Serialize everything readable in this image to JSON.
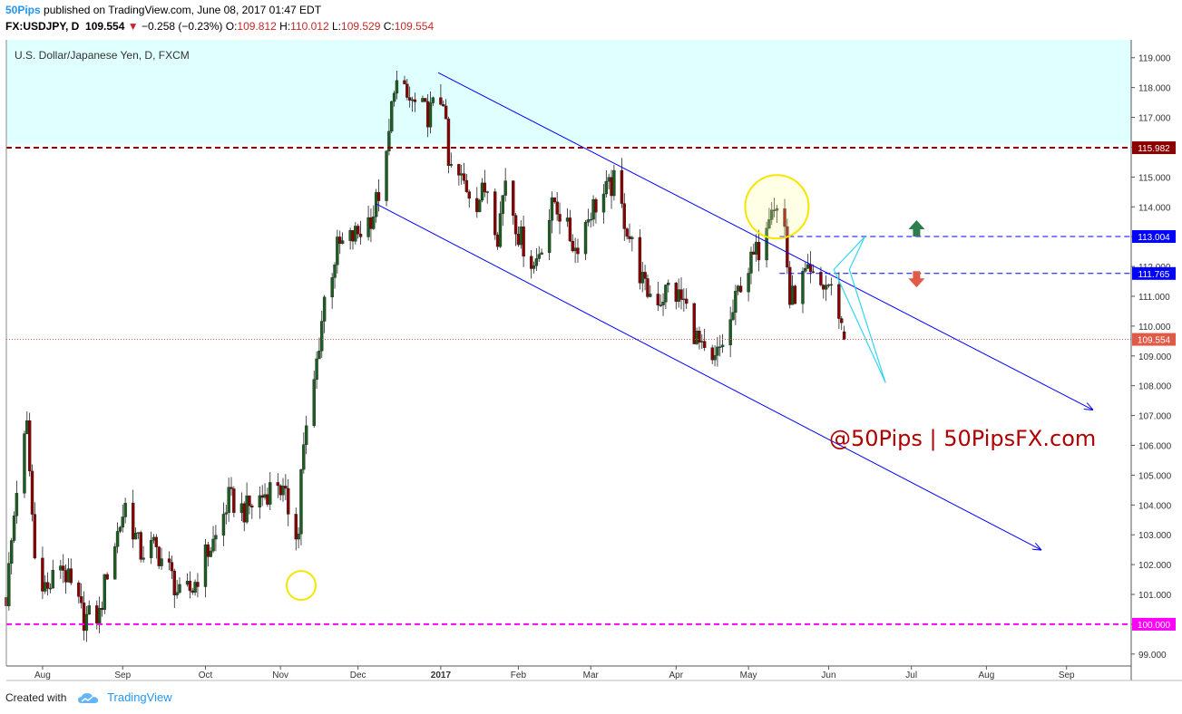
{
  "header": {
    "author": "50Pips",
    "published": "published on TradingView.com, June 08, 2017 01:47 EDT",
    "symbol": "FX:USDJPY, D",
    "price": "109.554",
    "change_arrow": "▼",
    "change": "−0.258 (−0.23%)",
    "o_label": "O:",
    "o": "109.812",
    "h_label": "H:",
    "h": "110.012",
    "l_label": "L:",
    "l": "109.529",
    "c_label": "C:",
    "c": "109.554"
  },
  "chart_title": "U.S. Dollar/Japanese Yen, D, FXCM",
  "watermark": "@50Pips | 50PipsFX.com",
  "footer": {
    "created": "Created with",
    "brand": "TradingView"
  },
  "colors": {
    "up": "#1b5e20",
    "down": "#8b0000",
    "zone": "#e0ffff",
    "channel": "#0000ff",
    "current": "#e05a47",
    "magenta": "#ff00ff",
    "resistance": "#8b0000",
    "label_blue": "#0000ff"
  },
  "chart_data": {
    "type": "candlestick",
    "title": "U.S. Dollar/Japanese Yen, D, FXCM",
    "ylim": [
      98.6,
      119.6
    ],
    "y_ticks": [
      "99.000",
      "100.000",
      "101.000",
      "102.000",
      "103.000",
      "104.000",
      "105.000",
      "106.000",
      "107.000",
      "108.000",
      "109.000",
      "110.000",
      "111.000",
      "112.000",
      "113.000",
      "114.000",
      "115.000",
      "116.000",
      "117.000",
      "118.000",
      "119.000"
    ],
    "x_tick_labels": [
      "Aug",
      "Sep",
      "Oct",
      "Nov",
      "Dec",
      "2017",
      "Feb",
      "Mar",
      "Apr",
      "May",
      "Jun",
      "Jul",
      "Aug",
      "Sep"
    ],
    "close_path": [
      {
        "date": "2016-07-18",
        "close": 100.9
      },
      {
        "date": "2016-07-22",
        "close": 104.6
      },
      {
        "date": "2016-07-26",
        "close": 106.6
      },
      {
        "date": "2016-07-29",
        "close": 102.2
      },
      {
        "date": "2016-08-03",
        "close": 101.1
      },
      {
        "date": "2016-08-08",
        "close": 102.1
      },
      {
        "date": "2016-08-12",
        "close": 101.2
      },
      {
        "date": "2016-08-17",
        "close": 100.2
      },
      {
        "date": "2016-08-23",
        "close": 100.3
      },
      {
        "date": "2016-08-26",
        "close": 101.8
      },
      {
        "date": "2016-09-02",
        "close": 104.0
      },
      {
        "date": "2016-09-08",
        "close": 102.4
      },
      {
        "date": "2016-09-13",
        "close": 102.6
      },
      {
        "date": "2016-09-19",
        "close": 101.8
      },
      {
        "date": "2016-09-23",
        "close": 100.9
      },
      {
        "date": "2016-09-28",
        "close": 101.2
      },
      {
        "date": "2016-10-03",
        "close": 102.3
      },
      {
        "date": "2016-10-07",
        "close": 102.9
      },
      {
        "date": "2016-10-12",
        "close": 104.2
      },
      {
        "date": "2016-10-18",
        "close": 103.8
      },
      {
        "date": "2016-10-25",
        "close": 104.3
      },
      {
        "date": "2016-10-31",
        "close": 104.8
      },
      {
        "date": "2016-11-08",
        "close": 103.0
      },
      {
        "date": "2016-11-09",
        "close": 105.3
      },
      {
        "date": "2016-11-14",
        "close": 108.1
      },
      {
        "date": "2016-11-18",
        "close": 110.9
      },
      {
        "date": "2016-11-23",
        "close": 112.6
      },
      {
        "date": "2016-11-28",
        "close": 112.9
      },
      {
        "date": "2016-12-02",
        "close": 113.2
      },
      {
        "date": "2016-12-07",
        "close": 113.8
      },
      {
        "date": "2016-12-12",
        "close": 115.5
      },
      {
        "date": "2016-12-15",
        "close": 118.2
      },
      {
        "date": "2016-12-20",
        "close": 117.6
      },
      {
        "date": "2016-12-28",
        "close": 117.1
      },
      {
        "date": "2017-01-03",
        "close": 117.7
      },
      {
        "date": "2017-01-05",
        "close": 115.3
      },
      {
        "date": "2017-01-11",
        "close": 114.8
      },
      {
        "date": "2017-01-16",
        "close": 114.2
      },
      {
        "date": "2017-01-20",
        "close": 114.7
      },
      {
        "date": "2017-01-24",
        "close": 113.1
      },
      {
        "date": "2017-01-27",
        "close": 115.0
      },
      {
        "date": "2017-02-01",
        "close": 113.1
      },
      {
        "date": "2017-02-07",
        "close": 112.0
      },
      {
        "date": "2017-02-15",
        "close": 114.2
      },
      {
        "date": "2017-02-23",
        "close": 112.6
      },
      {
        "date": "2017-03-01",
        "close": 113.9
      },
      {
        "date": "2017-03-10",
        "close": 114.8
      },
      {
        "date": "2017-03-15",
        "close": 113.3
      },
      {
        "date": "2017-03-22",
        "close": 111.2
      },
      {
        "date": "2017-03-28",
        "close": 110.9
      },
      {
        "date": "2017-03-31",
        "close": 111.3
      },
      {
        "date": "2017-04-06",
        "close": 110.8
      },
      {
        "date": "2017-04-13",
        "close": 109.1
      },
      {
        "date": "2017-04-17",
        "close": 108.6
      },
      {
        "date": "2017-04-24",
        "close": 110.1
      },
      {
        "date": "2017-04-28",
        "close": 111.5
      },
      {
        "date": "2017-05-05",
        "close": 112.6
      },
      {
        "date": "2017-05-10",
        "close": 114.3
      },
      {
        "date": "2017-05-15",
        "close": 113.3
      },
      {
        "date": "2017-05-17",
        "close": 110.8
      },
      {
        "date": "2017-05-23",
        "close": 111.7
      },
      {
        "date": "2017-05-29",
        "close": 111.3
      },
      {
        "date": "2017-06-01",
        "close": 111.4
      },
      {
        "date": "2017-06-05",
        "close": 110.5
      },
      {
        "date": "2017-06-07",
        "close": 109.554
      }
    ],
    "channel_upper": [
      {
        "date": "2017-01-01",
        "price": 118.5
      },
      {
        "date": "2017-09-11",
        "price": 107.2
      }
    ],
    "channel_lower": [
      {
        "date": "2016-12-08",
        "price": 114.1
      },
      {
        "date": "2017-08-22",
        "price": 102.5
      }
    ],
    "horizontal_levels": [
      {
        "price": 115.982,
        "label": "115.982",
        "style": "dashed",
        "color": "#8b0000"
      },
      {
        "price": 113.004,
        "label": "113.004",
        "style": "dashed",
        "color": "#0000ff"
      },
      {
        "price": 111.765,
        "label": "111.765",
        "style": "dashed",
        "color": "#0000ff"
      },
      {
        "price": 109.554,
        "label": "109.554",
        "style": "dotted",
        "color": "#e05a47"
      },
      {
        "price": 100.0,
        "label": "100.000",
        "style": "dashed",
        "color": "#ff00ff"
      }
    ],
    "zone": {
      "from": 116.1,
      "to": 119.6
    },
    "projection": [
      {
        "date": "2017-06-03",
        "price": 111.9
      },
      {
        "date": "2017-06-15",
        "price": 113.0
      },
      {
        "date": "2017-06-09",
        "price": 111.9
      },
      {
        "date": "2017-06-23",
        "price": 108.1
      },
      {
        "date": "2017-06-03",
        "price": 111.9
      }
    ],
    "circles": [
      {
        "date": "2016-11-09",
        "price": 101.3
      },
      {
        "date": "2017-05-12",
        "price": 114.0
      }
    ],
    "arrows": [
      {
        "date": "2017-07-05",
        "price": 113.25,
        "dir": "up"
      },
      {
        "date": "2017-07-05",
        "price": 111.6,
        "dir": "down"
      }
    ]
  }
}
